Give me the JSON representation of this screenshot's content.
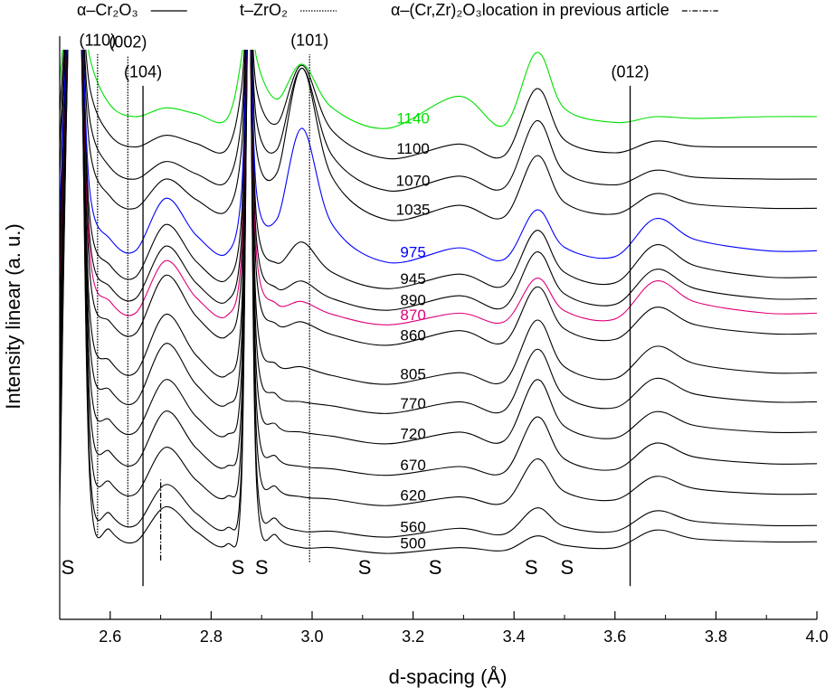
{
  "chart_data": {
    "type": "line",
    "xlabel": "d-spacing (Å)",
    "ylabel": "Intensity linear (a. u.)",
    "xlim": [
      2.5,
      4.0
    ],
    "ylim": [
      0,
      100
    ],
    "xticks": [
      2.6,
      2.8,
      {
        "value": 3,
        "label": "3.0"
      },
      3.2,
      3.4,
      3.6,
      3.8,
      {
        "value": 4,
        "label": "4.0"
      }
    ],
    "xminor_ticks": [
      2.5,
      2.7,
      2.9,
      3.1,
      3.3,
      3.5,
      3.7,
      3.9
    ],
    "x": [
      2.5,
      2.52,
      2.54,
      2.56,
      2.6,
      2.65,
      2.71,
      2.77,
      2.83,
      2.86,
      2.875,
      2.89,
      2.93,
      2.98,
      3.04,
      3.15,
      3.29,
      3.38,
      3.445,
      3.5,
      3.6,
      3.68,
      3.76,
      3.9,
      4.0
    ],
    "series": [
      {
        "name": "500",
        "color": "#000000",
        "values": [
          19.3,
          110,
          110,
          23.3,
          15.3,
          13.3,
          19.3,
          15.1,
          12.8,
          23.3,
          110,
          23.3,
          14.3,
          12.3,
          12.3,
          11.3,
          12.3,
          11.8,
          14.3,
          12.7,
          12.3,
          15.3,
          13.8,
          13.3,
          13.3
        ]
      },
      {
        "name": "560",
        "color": "#000000",
        "values": [
          22.1,
          110,
          110,
          26.1,
          18.1,
          16.1,
          23.1,
          18.2,
          15.6,
          26.1,
          110,
          26.1,
          17.1,
          15.1,
          15.1,
          14.1,
          15.6,
          14.6,
          19.1,
          15.9,
          15.1,
          18.6,
          16.8,
          16.1,
          16.1
        ]
      },
      {
        "name": "620",
        "color": "#000000",
        "values": [
          27.5,
          110,
          110,
          31.5,
          23.5,
          21.5,
          29.5,
          23.9,
          21,
          31.5,
          110,
          31.5,
          22.6,
          21,
          20.6,
          19.5,
          21,
          20,
          27.5,
          21.9,
          20.5,
          24.5,
          22.4,
          21.5,
          21.5
        ]
      },
      {
        "name": "670",
        "color": "#000000",
        "values": [
          32.7,
          110,
          110,
          36.7,
          28.7,
          26.7,
          35.7,
          29.4,
          26.2,
          36.7,
          110,
          36.7,
          27.8,
          26.2,
          25.8,
          24.7,
          26.2,
          25.2,
          34.7,
          27.5,
          25.7,
          30.2,
          27.8,
          26.7,
          26.7
        ]
      },
      {
        "name": "720",
        "color": "#000000",
        "values": [
          38.1,
          110,
          110,
          42.1,
          34.1,
          32.1,
          41.1,
          34.8,
          31.6,
          42.1,
          110,
          42.1,
          33.3,
          32.1,
          31.4,
          30.1,
          32.1,
          30.6,
          41.1,
          33.1,
          31.1,
          35.6,
          33.2,
          32.1,
          32.1
        ]
      },
      {
        "name": "770",
        "color": "#000000",
        "values": [
          43.3,
          110,
          110,
          47.3,
          39.3,
          37.3,
          47.3,
          40.3,
          36.8,
          47.3,
          110,
          47.3,
          38.5,
          37.3,
          36.6,
          35.3,
          37.3,
          35.8,
          46.3,
          38.3,
          36.3,
          41.3,
          38.6,
          37.3,
          37.3
        ]
      },
      {
        "name": "805",
        "color": "#000000",
        "values": [
          48.3,
          110,
          110,
          52.3,
          44.3,
          42.3,
          52.3,
          45.3,
          41.8,
          52.3,
          110,
          52.3,
          43.7,
          43.3,
          41.8,
          40.3,
          42.3,
          40.8,
          51.3,
          43.3,
          41.3,
          46.8,
          43.8,
          42.3,
          42.3
        ]
      },
      {
        "name": "860",
        "color": "#000000",
        "values": [
          55,
          110,
          110,
          59,
          51,
          49,
          59,
          52,
          48.5,
          59,
          110,
          59,
          50.6,
          51,
          48.8,
          47,
          49.5,
          47.5,
          57,
          49.8,
          48,
          53.5,
          50.5,
          49,
          49
        ]
      },
      {
        "name": "870",
        "color": "#e0007a",
        "values": [
          58.5,
          110,
          110,
          62.5,
          54.5,
          52.5,
          61.5,
          55.2,
          52,
          62.5,
          110,
          62.5,
          54.1,
          54.5,
          52.3,
          50.5,
          52.5,
          51,
          58.5,
          52.9,
          51.5,
          58,
          54.4,
          52.5,
          52.5
        ]
      },
      {
        "name": "890",
        "color": "#000000",
        "values": [
          61,
          110,
          110,
          65,
          57,
          55,
          64,
          57.7,
          54.5,
          65,
          110,
          65,
          56.8,
          58,
          55,
          53,
          55.5,
          53.5,
          63,
          55.8,
          54,
          60,
          56.7,
          55,
          55
        ]
      },
      {
        "name": "945",
        "color": "#000000",
        "values": [
          64.7,
          110,
          110,
          68.7,
          60.7,
          58.7,
          67.7,
          61.4,
          58.2,
          68.7,
          110,
          68.7,
          61.1,
          64.7,
          59.5,
          56.7,
          59.2,
          57.2,
          66.7,
          59.5,
          57.7,
          64.2,
          60.6,
          58.7,
          58.7
        ]
      },
      {
        "name": "975",
        "color": "#0000ff",
        "values": [
          69.2,
          110,
          110,
          73.2,
          65.2,
          63.2,
          72.2,
          65.9,
          62.7,
          73.2,
          110,
          73.2,
          68.6,
          84.2,
          67.7,
          61.2,
          63.7,
          61.7,
          70.2,
          63.8,
          62.2,
          68.7,
          65.1,
          63.2,
          63.2
        ]
      },
      {
        "name": "1035",
        "color": "#000000",
        "values": [
          76.5,
          110,
          110,
          80.5,
          72.5,
          70.5,
          75.5,
          72,
          70,
          80.5,
          110,
          80.5,
          76.5,
          94.5,
          75.8,
          68.5,
          71,
          69,
          79.5,
          71.5,
          69.5,
          73,
          71.2,
          70.5,
          70.5
        ]
      },
      {
        "name": "1070",
        "color": "#000000",
        "values": [
          81.5,
          110,
          110,
          85.5,
          77.5,
          75.5,
          78.5,
          76.4,
          75,
          85.5,
          110,
          85.5,
          80.5,
          94.5,
          79.5,
          73.5,
          76,
          74,
          85.5,
          76.7,
          74.5,
          77,
          75.8,
          75.5,
          75.5
        ]
      },
      {
        "name": "1100",
        "color": "#000000",
        "values": [
          87,
          110,
          110,
          91,
          83,
          81,
          83,
          81.6,
          80.5,
          91,
          110,
          91,
          85,
          95,
          83.8,
          79,
          81.5,
          79.5,
          91,
          82.2,
          80,
          82,
          81.1,
          81,
          81
        ]
      },
      {
        "name": "1140",
        "color": "#00e000",
        "values": [
          92.2,
          110,
          110,
          96.2,
          88.2,
          86.2,
          87.7,
          86.7,
          85.7,
          96.2,
          110,
          96.2,
          89.2,
          95.2,
          87.7,
          84.2,
          89.7,
          84.7,
          97.2,
          87.6,
          85.2,
          86.2,
          85.9,
          86.2,
          86.2
        ]
      }
    ],
    "reference_sets": [
      {
        "name": "α–Cr₂O₃",
        "style": "solid",
        "lines": [
          {
            "x": 2.665,
            "label": "(104)",
            "y": [
              5.7,
              91.5
            ]
          },
          {
            "x": 3.63,
            "label": "(012)",
            "y": [
              5.7,
              91.5
            ]
          }
        ]
      },
      {
        "name": "t–ZrO₂",
        "style": "dotted",
        "lines": [
          {
            "x": 2.575,
            "label": "(110)",
            "y": [
              14.4,
              96.9
            ]
          },
          {
            "x": 2.635,
            "label": "(002)",
            "y": [
              15.8,
              96.6
            ]
          },
          {
            "x": 2.995,
            "label": "(101)",
            "y": [
              9.8,
              96.9
            ]
          }
        ]
      },
      {
        "name": "α–(Cr,Zr)₂O₃location in previous article",
        "style": "dashdot",
        "lines": [
          {
            "x": 2.7,
            "y": [
              10.1,
              24
            ]
          }
        ]
      }
    ],
    "annotations": [
      {
        "text": "S",
        "x": 2.516
      },
      {
        "text": "S",
        "x": 2.853
      },
      {
        "text": "S",
        "x": 2.9
      },
      {
        "text": "S",
        "x": 3.104
      },
      {
        "text": "S",
        "x": 3.244
      },
      {
        "text": "S",
        "x": 3.434
      },
      {
        "text": "S",
        "x": 3.505
      }
    ]
  }
}
